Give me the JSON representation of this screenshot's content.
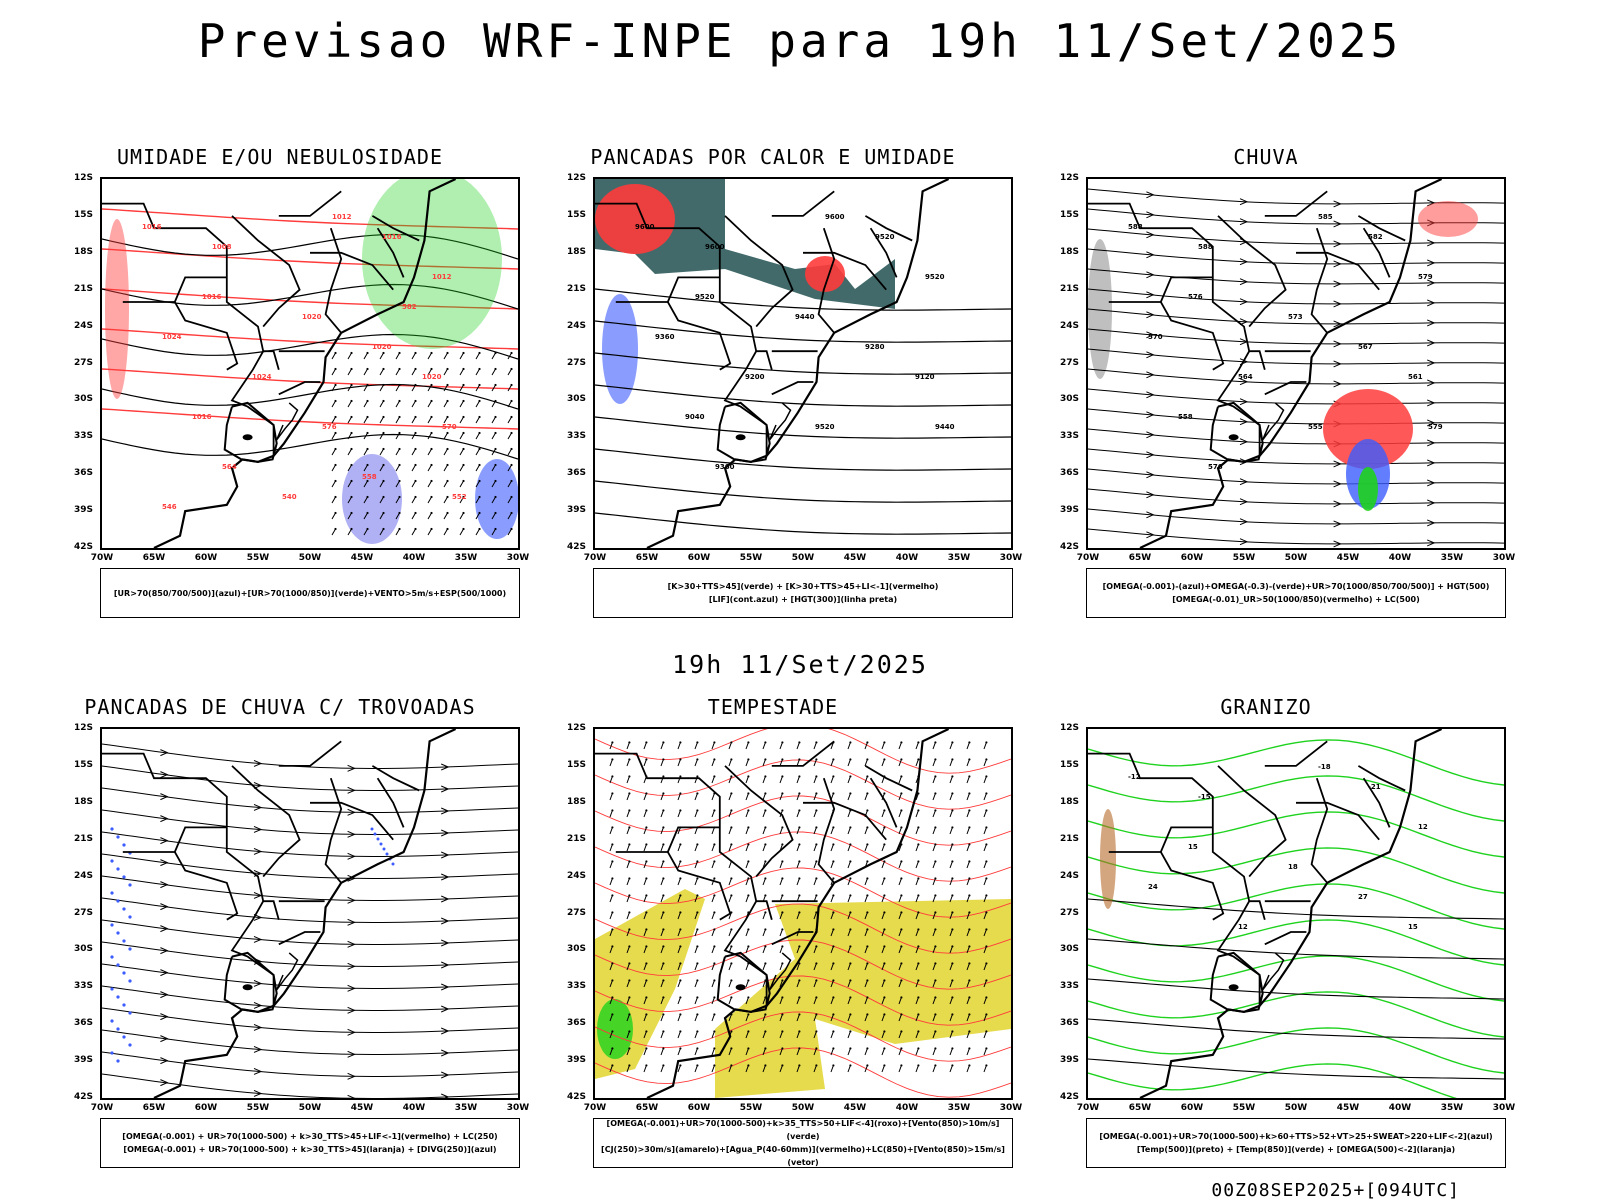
{
  "header": {
    "title": "Previsao WRF-INPE  para 19h 11/Set/2025",
    "mid_title": "19h 11/Set/2025",
    "run_stamp": "00Z08SEP2025+[094UTC]"
  },
  "axes": {
    "lat_labels": [
      "12S",
      "15S",
      "18S",
      "21S",
      "24S",
      "27S",
      "30S",
      "33S",
      "36S",
      "39S",
      "42S"
    ],
    "lon_labels": [
      "70W",
      "65W",
      "60W",
      "55W",
      "50W",
      "45W",
      "40W",
      "35W",
      "30W"
    ]
  },
  "panels": [
    {
      "id": "umidade",
      "title": "UMIDADE E/OU NEBULOSIDADE",
      "legend": [
        "[UR>70(850/700/500)](azul)+[UR>70(1000/850)](verde)+VENTO>5m/s+ESP(500/1000)"
      ],
      "contour_labels": [
        "1016",
        "1008",
        "1012",
        "1016",
        "1012",
        "1016",
        "1020",
        "1024",
        "1020",
        "1024",
        "1020",
        "1016",
        "576",
        "570",
        "564",
        "558",
        "552",
        "546",
        "540",
        "582"
      ]
    },
    {
      "id": "pancadas-calor",
      "title": "PANCADAS POR CALOR E UMIDADE",
      "legend": [
        "[K>30+TTS>45](verde) + [K>30+TTS>45+LI<-1](vermelho)",
        "[LIF](cont.azul) + [HGT(300)](linha preta)"
      ],
      "contour_labels": [
        "9600",
        "9600",
        "9600",
        "9520",
        "9520",
        "9520",
        "9440",
        "9360",
        "9280",
        "9200",
        "9120",
        "9040",
        "9520",
        "9440",
        "9360"
      ]
    },
    {
      "id": "chuva",
      "title": "CHUVA",
      "legend": [
        "[OMEGA(-0.001)-(azul)+OMEGA(-0.3)-(verde)+UR>70(1000/850/700/500)] + HGT(500)",
        "[OMEGA(-0.01)_UR>50(1000/850)(vermelho) + LC(500)"
      ],
      "contour_labels": [
        "588",
        "588",
        "585",
        "582",
        "579",
        "576",
        "573",
        "570",
        "567",
        "564",
        "561",
        "558",
        "555",
        "579",
        "576"
      ]
    },
    {
      "id": "trovoadas",
      "title": "PANCADAS DE CHUVA C/ TROVOADAS",
      "legend": [
        "[OMEGA(-0.001) + UR>70(1000-500) + k>30_TTS>45+LIF<-1](vermelho) + LC(250)",
        "[OMEGA(-0.001) + UR>70(1000-500) + k>30_TTS>45](laranja) + [DIVG(250)](azul)"
      ],
      "contour_labels": []
    },
    {
      "id": "tempestade",
      "title": "TEMPESTADE",
      "legend": [
        "[OMEGA(-0.001)+UR>70(1000-500)+k>35_TTS>50+LIF<-4](roxo)+[Vento(850)>10m/s](verde)",
        "[CJ(250)>30m/s](amarelo)+[Agua_P(40-60mm)](vermelho)+LC(850)+[Vento(850)>15m/s](vetor)"
      ],
      "contour_labels": []
    },
    {
      "id": "granizo",
      "title": "GRANIZO",
      "legend": [
        "[OMEGA(-0.001)+UR>70(1000-500)+k>60+TTS>52+VT>25+SWEAT>220+LIF<-2](azul)",
        "[Temp(500)](preto) + [Temp(850)](verde) + [OMEGA(500)<-2](laranja)"
      ],
      "contour_labels": [
        "-12",
        "-15",
        "-18",
        "-21",
        "12",
        "15",
        "18",
        "24",
        "27",
        "12",
        "15"
      ]
    }
  ],
  "colors": {
    "red": "#ff3b3b",
    "green": "#1ed21e",
    "blue": "#3c5cff",
    "yellow": "#e3d63a",
    "darkteal": "#2e5a5a",
    "lightblue": "#8e8ef0"
  }
}
